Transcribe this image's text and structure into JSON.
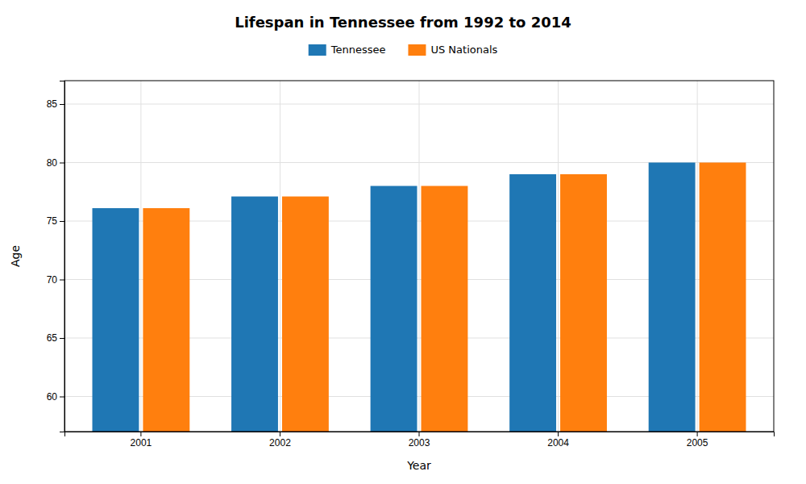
{
  "chart_data": {
    "type": "bar",
    "title": "Lifespan in Tennessee from 1992 to 2014",
    "x_label": "Year",
    "y_label": "Age",
    "categories": [
      "2001",
      "2002",
      "2003",
      "2004",
      "2005"
    ],
    "series": [
      {
        "name": "Tennessee",
        "values": [
          76.1,
          77.1,
          78.0,
          79.0,
          80.0
        ]
      },
      {
        "name": "US Nationals",
        "values": [
          76.1,
          77.1,
          78.0,
          79.0,
          80.0
        ]
      }
    ],
    "ylim": [
      57,
      87
    ],
    "yticks": [
      60,
      65,
      70,
      75,
      80,
      85
    ],
    "grid": true,
    "legend": "top"
  }
}
